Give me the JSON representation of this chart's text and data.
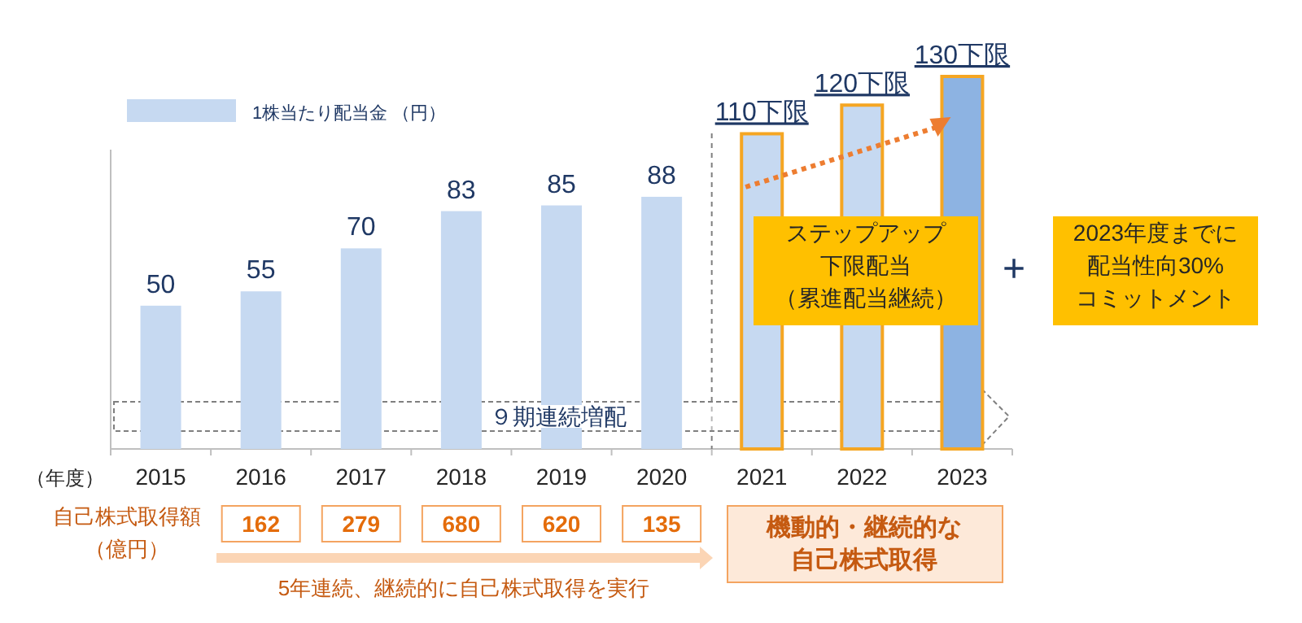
{
  "chart_data": {
    "type": "bar",
    "categories": [
      "2015",
      "2016",
      "2017",
      "2018",
      "2019",
      "2020",
      "2021",
      "2022",
      "2023"
    ],
    "series": [
      {
        "name": "1株当たり配当金 （円）",
        "colors": [
          "#c6d9f1",
          "#c6d9f1",
          "#c6d9f1",
          "#c6d9f1",
          "#c6d9f1",
          "#c6d9f1",
          "#c6d9f1",
          "#c6d9f1",
          "#8db3e2"
        ],
        "values": [
          50,
          55,
          70,
          83,
          85,
          88,
          110,
          120,
          130
        ],
        "value_labels": [
          "50",
          "55",
          "70",
          "83",
          "85",
          "88",
          "110下限",
          "120下限",
          "130下限"
        ]
      }
    ],
    "legend": "top left",
    "annotations": [
      "ステップアップ下限配当（累進配当継続）",
      "+",
      "2023年度までに配当性向30%コミットメント",
      "９期連続増配",
      "（年度）",
      "自己株式取得額（億円）",
      "162",
      "279",
      "680",
      "620",
      "135",
      "機動的・継続的な自己株式取得",
      "5年連続、継続的に自己株式取得を実行"
    ]
  }
}
